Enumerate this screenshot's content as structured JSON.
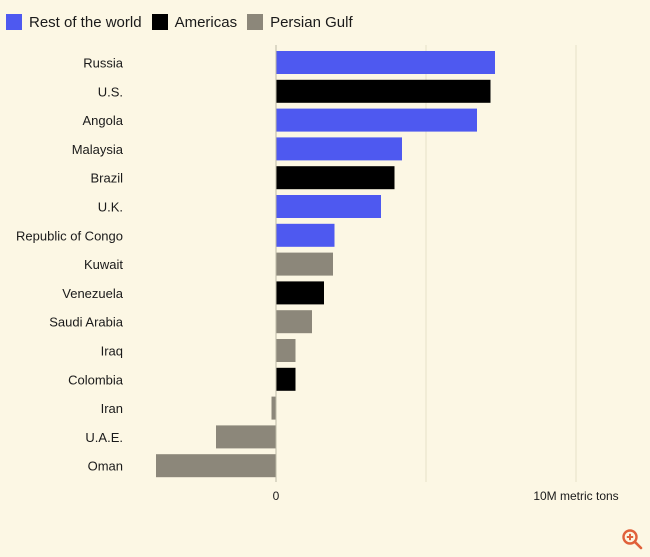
{
  "legend": [
    {
      "label": "Rest of the world",
      "color": "#4e59f0"
    },
    {
      "label": "Americas",
      "color": "#000000"
    },
    {
      "label": "Persian Gulf",
      "color": "#8c877a"
    }
  ],
  "chart_data": {
    "type": "bar",
    "orientation": "horizontal",
    "unit": "metric tons",
    "categories": [
      "Russia",
      "U.S.",
      "Angola",
      "Malaysia",
      "Brazil",
      "U.K.",
      "Republic of Congo",
      "Kuwait",
      "Venezuela",
      "Saudi Arabia",
      "Iraq",
      "Colombia",
      "Iran",
      "U.A.E.",
      "Oman"
    ],
    "values": [
      7300000,
      7150000,
      6700000,
      4200000,
      3950000,
      3500000,
      1950000,
      1900000,
      1600000,
      1200000,
      650000,
      650000,
      -150000,
      -2000000,
      -4000000
    ],
    "regions": [
      "Rest of the world",
      "Americas",
      "Rest of the world",
      "Rest of the world",
      "Americas",
      "Rest of the world",
      "Rest of the world",
      "Persian Gulf",
      "Americas",
      "Persian Gulf",
      "Persian Gulf",
      "Americas",
      "Persian Gulf",
      "Persian Gulf",
      "Persian Gulf"
    ],
    "xlim": [
      -4000000,
      10000000
    ],
    "ticks": [
      {
        "value": 0,
        "label": "0"
      },
      {
        "value": 5000000,
        "label": ""
      },
      {
        "value": 10000000,
        "label": "10M metric tons"
      }
    ],
    "grid": true,
    "legend_position": "top-left",
    "title": "",
    "xlabel": "",
    "ylabel": ""
  },
  "icons": {
    "zoom": "zoom-in-icon"
  }
}
